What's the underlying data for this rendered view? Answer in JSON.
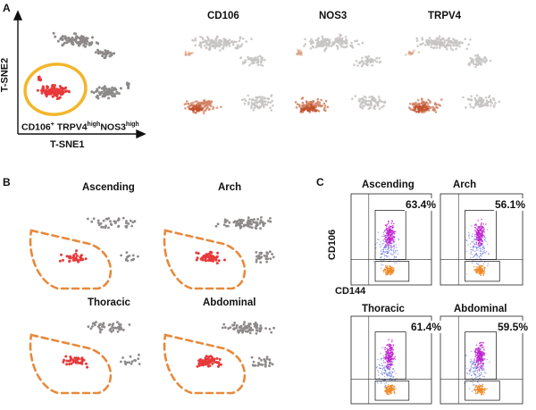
{
  "panel_a": {
    "letter": "A",
    "y_axis": "T-SNE2",
    "x_axis": "T-SNE1",
    "subset": {
      "main": "CD106",
      "sup1": "+",
      "m2": " TRPV4",
      "sup2": "high",
      "m3": "NOS3",
      "sup3": "high"
    },
    "markers": [
      "CD106",
      "NOS3",
      "TRPV4"
    ]
  },
  "panel_b": {
    "letter": "B",
    "segments": [
      "Ascending",
      "Arch",
      "Thoracic",
      "Abdominal"
    ]
  },
  "panel_c": {
    "letter": "C",
    "y_axis": "CD106",
    "x_axis": "CD144",
    "plots": [
      {
        "title": "Ascending",
        "percent": "63.4%"
      },
      {
        "title": "Arch",
        "percent": "56.1%"
      },
      {
        "title": "Thoracic",
        "percent": "61.4%"
      },
      {
        "title": "Abdominal",
        "percent": "59.5%"
      }
    ]
  },
  "colors": {
    "cluster_red": "#e8393a",
    "other_grey": "#8e8a8a",
    "gate_orange": "#e8893a",
    "highlight_yellow": "#f3b62a",
    "flow_magenta": "#c21fd1",
    "flow_orange": "#f08a24",
    "flow_blue": "#3a4fd0"
  }
}
